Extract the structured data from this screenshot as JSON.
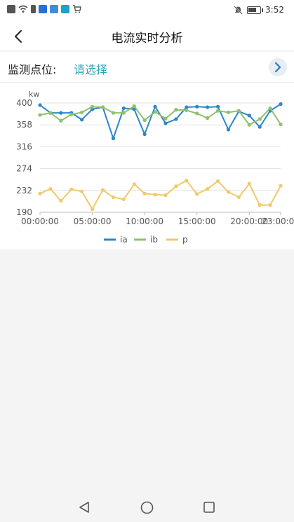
{
  "status_bar": {
    "time": "3:52",
    "left_icons": [
      "alert-icon",
      "wifi-icon",
      "battery-small-icon",
      "app-blue-icon",
      "app-cloud-icon",
      "app-search-icon",
      "cart-icon"
    ],
    "right_icons": [
      "mute-icon",
      "battery-icon"
    ],
    "battery_level": 0.75
  },
  "header": {
    "back_icon": "chevron-left-icon",
    "title": "电流实时分析"
  },
  "selector": {
    "label": "监测点位:",
    "value": "请选择",
    "arrow_icon": "chevron-right-icon",
    "accent_color": "#2fa6b8"
  },
  "chart_data": {
    "type": "line",
    "ylabel": "kw",
    "ylim": [
      190,
      400
    ],
    "yticks": [
      400,
      358,
      316,
      274,
      232,
      190
    ],
    "xticks": [
      "00:00:00",
      "05:00:00",
      "10:00:00",
      "15:00:00",
      "20:00:00",
      "23:00:00"
    ],
    "xtick_positions": [
      0,
      5,
      10,
      15,
      20,
      23
    ],
    "x": [
      0,
      1,
      2,
      3,
      4,
      5,
      6,
      7,
      8,
      9,
      10,
      11,
      12,
      13,
      14,
      15,
      16,
      17,
      18,
      19,
      20,
      21,
      22,
      23
    ],
    "series": [
      {
        "name": "ia",
        "color": "#2b87c8",
        "values": [
          396,
          381,
          381,
          381,
          368,
          388,
          392,
          332,
          390,
          388,
          340,
          393,
          361,
          369,
          392,
          393,
          392,
          393,
          349,
          384,
          376,
          354,
          385,
          398
        ]
      },
      {
        "name": "ib",
        "color": "#8fc06b",
        "values": [
          377,
          381,
          366,
          378,
          382,
          393,
          392,
          381,
          381,
          394,
          367,
          383,
          370,
          387,
          386,
          380,
          371,
          385,
          382,
          385,
          358,
          369,
          390,
          359
        ]
      },
      {
        "name": "p",
        "color": "#f1c96a",
        "values": [
          226,
          235,
          212,
          234,
          230,
          196,
          233,
          219,
          215,
          244,
          226,
          224,
          223,
          240,
          251,
          225,
          235,
          250,
          229,
          219,
          245,
          204,
          204,
          241
        ]
      }
    ],
    "legend_position": "bottom-center",
    "grid": true
  },
  "nav_bar": {
    "icons": [
      "nav-back-icon",
      "nav-home-icon",
      "nav-recent-icon"
    ]
  }
}
